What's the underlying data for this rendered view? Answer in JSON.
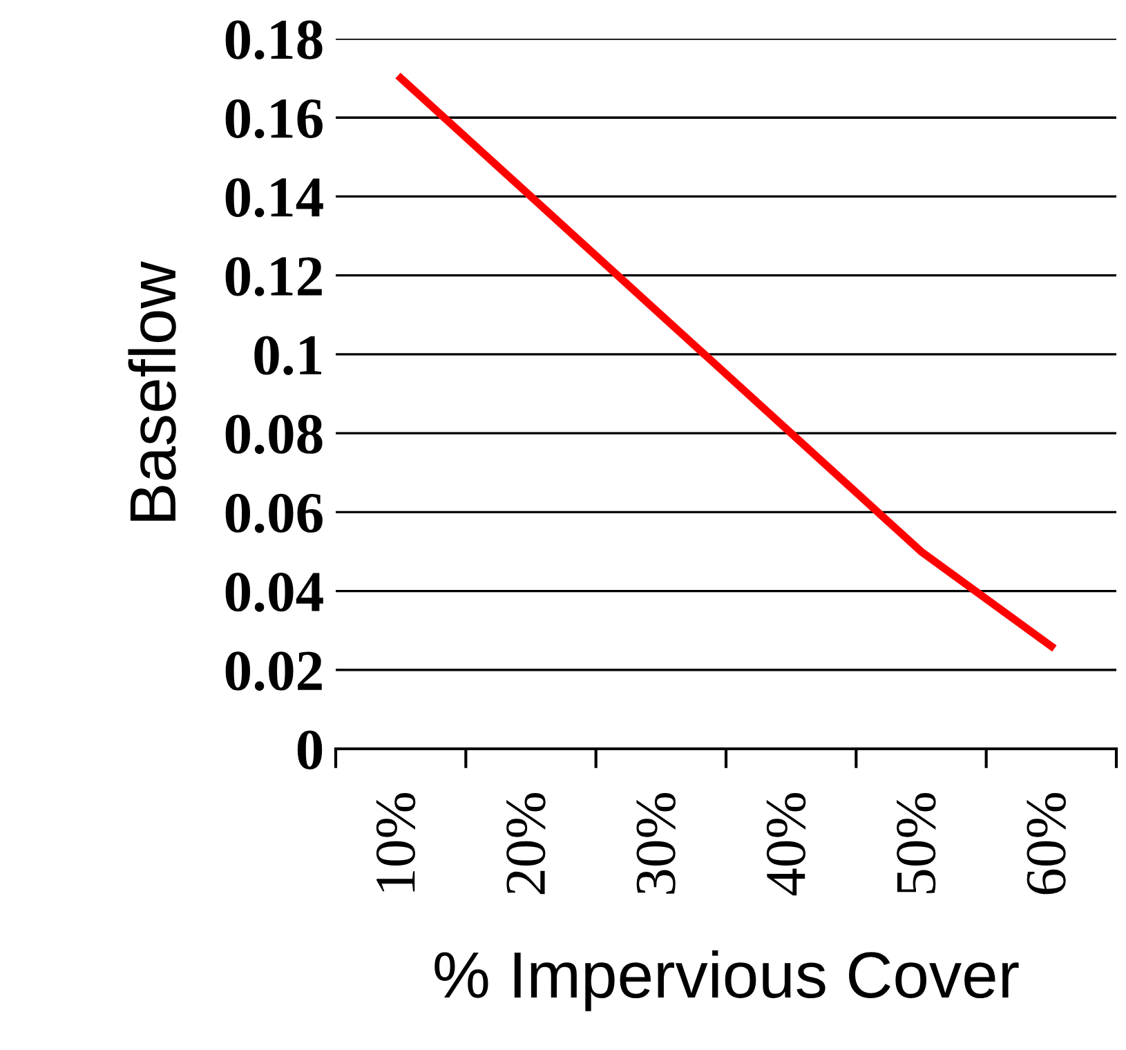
{
  "chart_data": {
    "type": "line",
    "xlabel": "% Impervious Cover",
    "ylabel": "Baseflow",
    "categories": [
      "10%",
      "20%",
      "30%",
      "40%",
      "50%",
      "60%"
    ],
    "series": [
      {
        "color": "#ff0000",
        "values": [
          0.17,
          0.14,
          0.11,
          0.08,
          0.05,
          0.026
        ]
      }
    ],
    "ylim": [
      0,
      0.18
    ],
    "yticks": [
      0,
      0.02,
      0.04,
      0.06,
      0.08,
      0.1,
      0.12,
      0.14,
      0.16,
      0.18
    ],
    "grid": "y",
    "legend": false,
    "marker": "none",
    "line_style": "solid"
  }
}
